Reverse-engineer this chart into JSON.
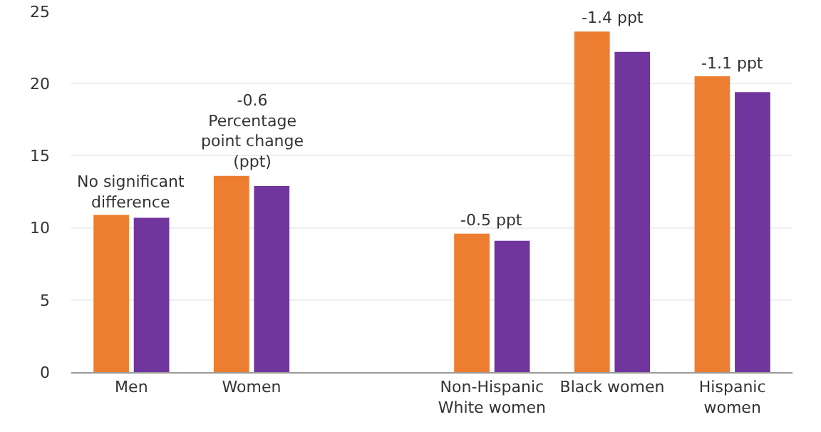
{
  "chart_data": {
    "type": "bar",
    "categories": [
      "Men",
      "Women",
      null,
      "Non-Hispanic White women",
      "Black women",
      "Hispanic women"
    ],
    "series": [
      {
        "color": "#ed7d31",
        "values": [
          10.9,
          13.6,
          null,
          9.6,
          23.6,
          20.5
        ]
      },
      {
        "color": "#70369d",
        "values": [
          10.7,
          12.9,
          null,
          9.1,
          22.2,
          19.4
        ]
      }
    ],
    "ylim": [
      0,
      25
    ],
    "yticks": [
      0,
      5,
      10,
      15,
      20,
      25
    ],
    "grid": "y",
    "legend": false,
    "annotations": [
      {
        "text": "No significant difference",
        "x": "Men",
        "y": 10.9
      },
      {
        "text": "-0.6 Percentage point change (ppt)",
        "x": "Women",
        "y": 13.6
      },
      {
        "text": "-0.5 ppt",
        "x": "Non-Hispanic White women",
        "y": 9.6
      },
      {
        "text": "-1.4 ppt",
        "x": "Black women",
        "y": 23.6
      },
      {
        "text": "-1.1 ppt",
        "x": "Hispanic women",
        "y": 20.5
      }
    ]
  }
}
